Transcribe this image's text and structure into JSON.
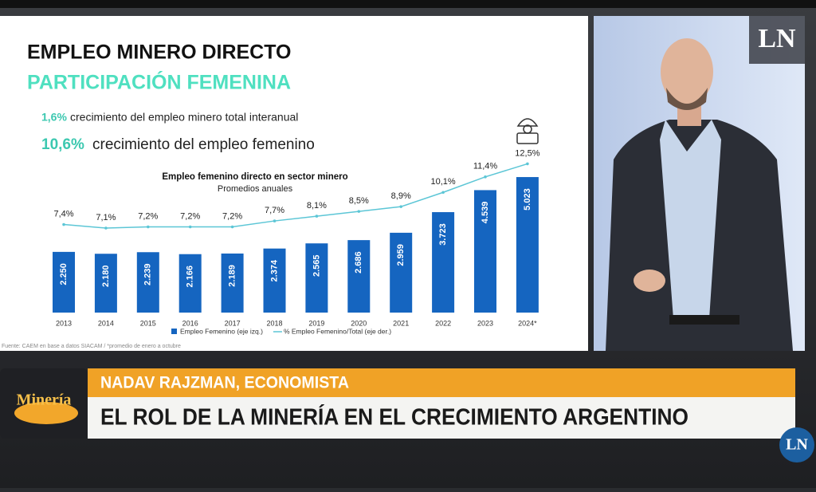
{
  "slide": {
    "title": "EMPLEO MINERO DIRECTO",
    "subtitle": "PARTICIPACIÓN FEMENINA",
    "stats": [
      {
        "value": "1,6%",
        "text": "crecimiento del empleo minero total interanual"
      },
      {
        "value": "10,6%",
        "text": "crecimiento del empleo femenino"
      }
    ],
    "note": "Fuente: CAEM en base a datos SIACAM / *promedio de enero a octubre"
  },
  "chart_data": {
    "type": "bar-line",
    "title": "Empleo femenino directo en sector minero",
    "subtitle": "Promedios anuales",
    "categories": [
      "2013",
      "2014",
      "2015",
      "2016",
      "2017",
      "2018",
      "2019",
      "2020",
      "2021",
      "2022",
      "2023",
      "2024*"
    ],
    "series": [
      {
        "name": "Empleo Femenino (eje izq.)",
        "type": "bar",
        "color": "#1565c0",
        "values": [
          2250,
          2180,
          2239,
          2166,
          2189,
          2374,
          2565,
          2686,
          2959,
          3723,
          4539,
          5023
        ],
        "value_labels": [
          "2.250",
          "2.180",
          "2.239",
          "2.166",
          "2.189",
          "2.374",
          "2.565",
          "2.686",
          "2.959",
          "3.723",
          "4.539",
          "5.023"
        ]
      },
      {
        "name": "% Empleo Femenino/Total (eje der.)",
        "type": "line",
        "axis": "y2",
        "color": "#5cc6d6",
        "values": [
          7.4,
          7.1,
          7.2,
          7.2,
          7.2,
          7.7,
          8.1,
          8.5,
          8.9,
          10.1,
          11.4,
          12.5
        ],
        "value_labels": [
          "7,4%",
          "7,1%",
          "7,2%",
          "7,2%",
          "7,2%",
          "7,7%",
          "8,1%",
          "8,5%",
          "8,9%",
          "10,1%",
          "11,4%",
          "12,5%"
        ]
      }
    ],
    "ylim": [
      0,
      6000
    ],
    "y2lim": [
      0,
      13.6
    ],
    "grid": false,
    "legend": "bottom"
  },
  "broadcast": {
    "logo": "LN",
    "badge": "Minería",
    "name": "NADAV RAJZMAN, ECONOMISTA",
    "headline": "EL ROL DE LA MINERÍA EN EL CRECIMIENTO ARGENTINO"
  }
}
